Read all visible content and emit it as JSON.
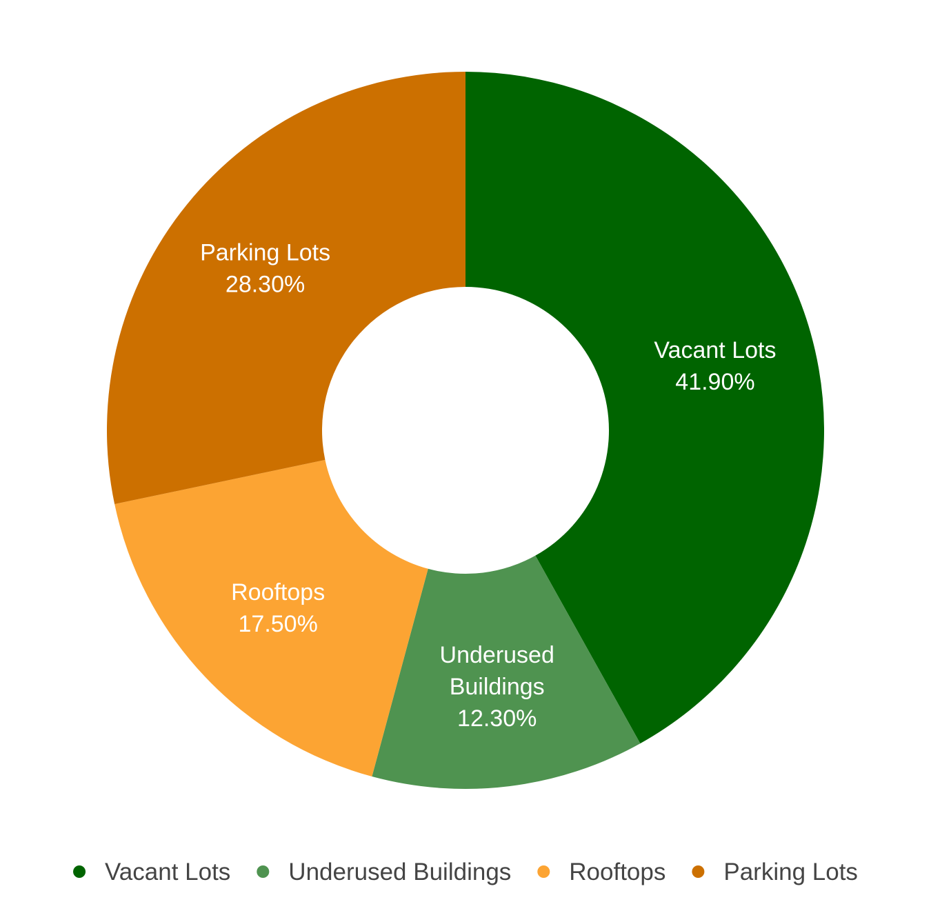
{
  "chart_data": {
    "type": "pie",
    "variant": "donut",
    "categories": [
      "Vacant Lots",
      "Underused Buildings",
      "Rooftops",
      "Parking Lots"
    ],
    "values": [
      41.9,
      12.3,
      17.5,
      28.3
    ],
    "data_labels": [
      [
        "Vacant Lots",
        "41.90%"
      ],
      [
        "Underused",
        "Buildings",
        "12.30%"
      ],
      [
        "Rooftops",
        "17.50%"
      ],
      [
        "Parking Lots",
        "28.30%"
      ]
    ],
    "colors": [
      "#006400",
      "#4f9350",
      "#fca433",
      "#cc7000"
    ],
    "legend": {
      "position": "bottom",
      "items": [
        "Vacant Lots",
        "Underused Buildings",
        "Rooftops",
        "Parking Lots"
      ]
    },
    "title": "",
    "start_angle": "top",
    "direction": "clockwise"
  }
}
